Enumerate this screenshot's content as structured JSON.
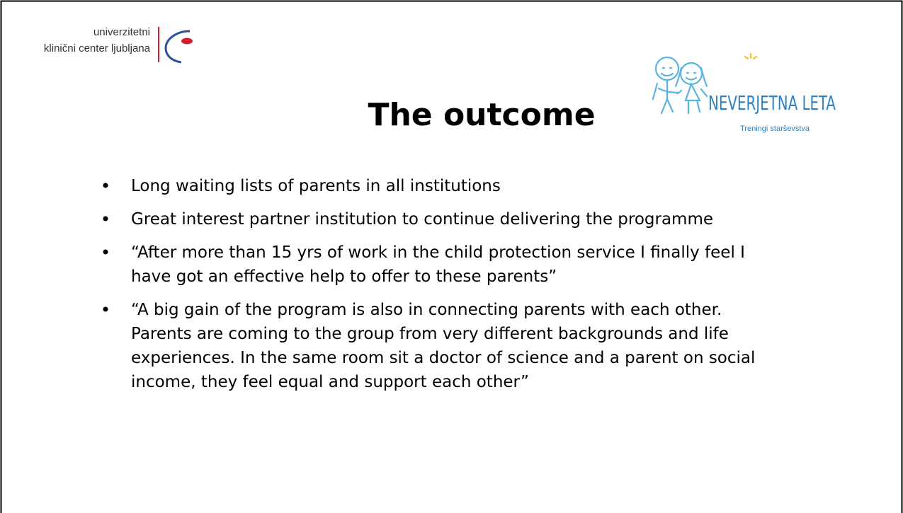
{
  "logo_left": {
    "line1": "univerzitetni",
    "line2": "klinični center ljubljana"
  },
  "logo_right": {
    "name": "NEVERJETNA LETA",
    "tagline": "Treningi starševstva"
  },
  "title": "The outcome",
  "bullets": [
    [
      "Long waiting lists of parents in all institutions"
    ],
    [
      "Great interest partner institution to continue delivering the programme"
    ],
    [
      "“After more than 15 yrs of work in the child protection service I finally feel I",
      "have got an effective help to offer to these parents”"
    ],
    [
      "“A big gain of the program is also in connecting parents with each other.",
      "Parents are coming to the group from very different backgrounds and life",
      "experiences. In the same room sit a doctor of science and a parent on social",
      "income, they feel equal and support each other”"
    ]
  ]
}
